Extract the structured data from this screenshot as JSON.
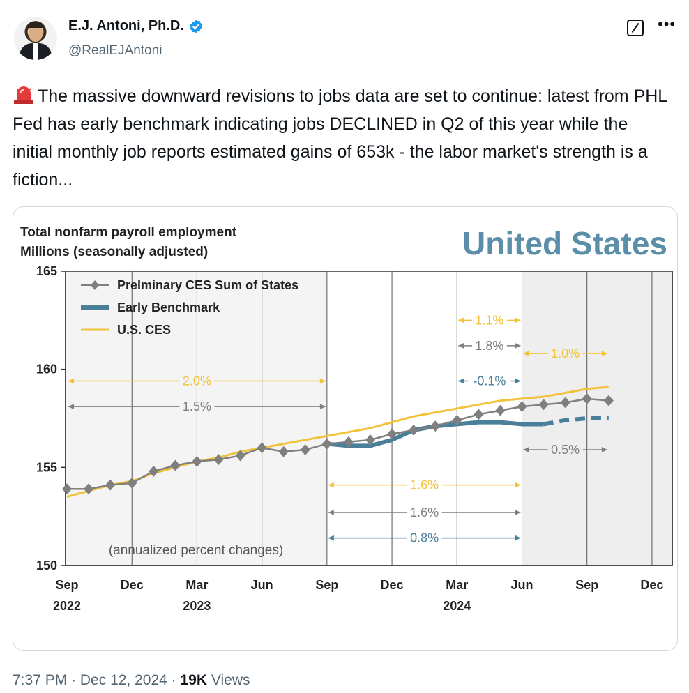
{
  "author": {
    "name": "E.J. Antoni, Ph.D.",
    "handle": "@RealEJAntoni",
    "verified": true
  },
  "tweet": {
    "text": "The massive downward revisions to jobs data are set to continue: latest from PHL Fed has early benchmark indicating jobs DECLINED in Q2 of this year while the initial monthly job reports estimated gains of 653k - the labor market's strength is a fiction..."
  },
  "meta": {
    "time": "7:37 PM",
    "date": "Dec 12, 2024",
    "views_count": "19K",
    "views_label": "Views"
  },
  "icons": {
    "siren": "police-siren-emoji-icon",
    "grok": "grok-icon",
    "more": "more-options-icon",
    "verified": "verified-badge-icon"
  },
  "chart_data": {
    "type": "line",
    "title_line1": "Total nonfarm payroll employment",
    "title_line2": "Millions (seasonally adjusted)",
    "region_title": "United States",
    "ylim": [
      150,
      165
    ],
    "yticks": [
      150,
      155,
      160,
      165
    ],
    "x_ticks": [
      {
        "month": "Sep",
        "year": "2022",
        "idx": 0
      },
      {
        "month": "Dec",
        "year": "",
        "idx": 3
      },
      {
        "month": "Mar",
        "year": "2023",
        "idx": 6
      },
      {
        "month": "Jun",
        "year": "",
        "idx": 9
      },
      {
        "month": "Sep",
        "year": "",
        "idx": 12
      },
      {
        "month": "Dec",
        "year": "",
        "idx": 15
      },
      {
        "month": "Mar",
        "year": "2024",
        "idx": 18
      },
      {
        "month": "Jun",
        "year": "",
        "idx": 21
      },
      {
        "month": "Sep",
        "year": "",
        "idx": 24
      },
      {
        "month": "Dec",
        "year": "",
        "idx": 27
      }
    ],
    "shaded_after_idx": 21,
    "legend": [
      {
        "name": "Prelminary CES Sum of States",
        "color": "#7f7f7f",
        "style": "marker-line"
      },
      {
        "name": "Early Benchmark",
        "color": "#4a7f9a",
        "style": "thick"
      },
      {
        "name": "U.S. CES",
        "color": "#f2c23a",
        "style": "thin"
      }
    ],
    "series": [
      {
        "name": "Prelminary CES Sum of States",
        "color": "#7f7f7f",
        "x": [
          0,
          1,
          2,
          3,
          4,
          5,
          6,
          7,
          8,
          9,
          10,
          11,
          12,
          13,
          14,
          15,
          16,
          17,
          18,
          19,
          20,
          21,
          22,
          23,
          24,
          25
        ],
        "values": [
          153.9,
          153.9,
          154.1,
          154.2,
          154.8,
          155.1,
          155.3,
          155.4,
          155.6,
          156.0,
          155.8,
          155.9,
          156.2,
          156.3,
          156.4,
          156.7,
          156.9,
          157.1,
          157.4,
          157.7,
          157.9,
          158.1,
          158.2,
          158.3,
          158.5,
          158.4
        ]
      },
      {
        "name": "Early Benchmark",
        "color": "#4a7f9a",
        "x": [
          12,
          13,
          14,
          15,
          16,
          17,
          18,
          19,
          20,
          21,
          22
        ],
        "values": [
          156.2,
          156.1,
          156.1,
          156.4,
          156.9,
          157.1,
          157.2,
          157.3,
          157.3,
          157.2,
          157.2
        ],
        "projected_x": [
          22,
          23,
          24,
          25
        ],
        "projected_values": [
          157.2,
          157.4,
          157.5,
          157.5
        ]
      },
      {
        "name": "U.S. CES",
        "color": "#f2c23a",
        "x": [
          0,
          1,
          2,
          3,
          4,
          5,
          6,
          7,
          8,
          9,
          10,
          11,
          12,
          13,
          14,
          15,
          16,
          17,
          18,
          19,
          20,
          21,
          22,
          23,
          24,
          25
        ],
        "values": [
          153.5,
          153.8,
          154.1,
          154.3,
          154.7,
          155.0,
          155.3,
          155.5,
          155.8,
          156.0,
          156.2,
          156.4,
          156.6,
          156.8,
          157.0,
          157.3,
          157.6,
          157.8,
          158.0,
          158.2,
          158.4,
          158.5,
          158.6,
          158.8,
          159.0,
          159.1
        ]
      }
    ],
    "annotations": [
      {
        "label": "2.0%",
        "color": "#f2c23a",
        "from": 0,
        "to": 12,
        "y": 159.4
      },
      {
        "label": "1.5%",
        "color": "#7f7f7f",
        "from": 0,
        "to": 12,
        "y": 158.1
      },
      {
        "label": "1.6%",
        "color": "#f2c23a",
        "from": 12,
        "to": 21,
        "y": 154.1
      },
      {
        "label": "1.6%",
        "color": "#7f7f7f",
        "from": 12,
        "to": 21,
        "y": 152.7
      },
      {
        "label": "0.8%",
        "color": "#4a7f9a",
        "from": 12,
        "to": 21,
        "y": 151.4
      },
      {
        "label": "1.1%",
        "color": "#f2c23a",
        "from": 18,
        "to": 21,
        "y": 162.5
      },
      {
        "label": "1.8%",
        "color": "#7f7f7f",
        "from": 18,
        "to": 21,
        "y": 161.2
      },
      {
        "label": "-0.1%",
        "color": "#4a7f9a",
        "from": 18,
        "to": 21,
        "y": 159.4
      },
      {
        "label": "1.0%",
        "color": "#f2c23a",
        "from": 21,
        "to": 25,
        "y": 160.8
      },
      {
        "label": "0.5%",
        "color": "#7f7f7f",
        "from": 21,
        "to": 25,
        "y": 155.9
      }
    ],
    "footnote": "(annualized percent changes)"
  }
}
